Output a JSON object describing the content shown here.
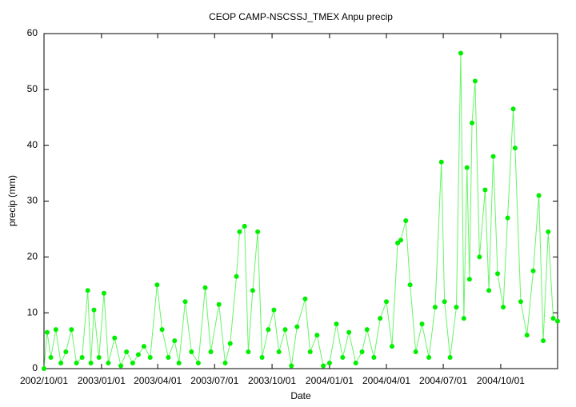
{
  "chart_data": {
    "type": "line",
    "title": "CEOP CAMP-NSCSSJ_TMEX Anpu  precip",
    "xlabel": "Date",
    "ylabel": "precip (mm)",
    "x": [
      "2002/10/01",
      "2002/10/06",
      "2002/10/12",
      "2002/10/20",
      "2002/10/28",
      "2002/11/05",
      "2002/11/14",
      "2002/11/22",
      "2002/12/01",
      "2002/12/10",
      "2002/12/15",
      "2002/12/20",
      "2002/12/28",
      "2003/01/05",
      "2003/01/12",
      "2003/01/22",
      "2003/02/01",
      "2003/02/10",
      "2003/02/20",
      "2003/03/01",
      "2003/03/10",
      "2003/03/20",
      "2003/03/31",
      "2003/04/08",
      "2003/04/18",
      "2003/04/28",
      "2003/05/05",
      "2003/05/15",
      "2003/05/25",
      "2003/06/05",
      "2003/06/16",
      "2003/06/25",
      "2003/07/08",
      "2003/07/18",
      "2003/07/26",
      "2003/08/05",
      "2003/08/10",
      "2003/08/18",
      "2003/08/24",
      "2003/08/31",
      "2003/09/08",
      "2003/09/15",
      "2003/09/25",
      "2003/10/04",
      "2003/10/12",
      "2003/10/22",
      "2003/11/01",
      "2003/11/10",
      "2003/11/23",
      "2003/12/01",
      "2003/12/12",
      "2003/12/22",
      "2004/01/01",
      "2004/01/12",
      "2004/01/22",
      "2004/02/01",
      "2004/02/12",
      "2004/02/22",
      "2004/03/01",
      "2004/03/12",
      "2004/03/22",
      "2004/04/01",
      "2004/04/10",
      "2004/04/19",
      "2004/04/24",
      "2004/05/02",
      "2004/05/09",
      "2004/05/18",
      "2004/05/28",
      "2004/06/08",
      "2004/06/18",
      "2004/06/28",
      "2004/07/03",
      "2004/07/12",
      "2004/07/22",
      "2004/07/29",
      "2004/08/03",
      "2004/08/08",
      "2004/08/12",
      "2004/08/16",
      "2004/08/21",
      "2004/08/28",
      "2004/09/06",
      "2004/09/12",
      "2004/09/19",
      "2004/09/26",
      "2004/10/05",
      "2004/10/12",
      "2004/10/21",
      "2004/10/24",
      "2004/11/02",
      "2004/11/12",
      "2004/11/22",
      "2004/12/01",
      "2004/12/08",
      "2004/12/16",
      "2004/12/24",
      "2004/12/31"
    ],
    "series": [
      {
        "name": "precip",
        "color": "#00ee00",
        "values": [
          0,
          6.5,
          2,
          7,
          1,
          3,
          7,
          1,
          2,
          14,
          1,
          10.5,
          2,
          13.5,
          1,
          5.5,
          0.5,
          3,
          1,
          2.5,
          4,
          2,
          15,
          7,
          2,
          5,
          1,
          12,
          3,
          1,
          14.5,
          3,
          11.5,
          1,
          4.5,
          16.5,
          24.5,
          25.5,
          3,
          14,
          24.5,
          2,
          7,
          10.5,
          3,
          7,
          0.5,
          7.5,
          12.5,
          3,
          6,
          0.5,
          1,
          8,
          2,
          6.5,
          1,
          3,
          7,
          2,
          9,
          12,
          4,
          22.5,
          23,
          26.5,
          15,
          3,
          8,
          2,
          11,
          37,
          12,
          2,
          11,
          56.5,
          9,
          36,
          16,
          44,
          51.5,
          20,
          32,
          14,
          38,
          17,
          11,
          27,
          46.5,
          39.5,
          12,
          6,
          17.5,
          31,
          5,
          24.5,
          9,
          8.5
        ]
      }
    ],
    "xlim": [
      "2002/10/01",
      "2004/12/31"
    ],
    "xticks": [
      "2002/10/01",
      "2003/01/01",
      "2003/04/01",
      "2003/07/01",
      "2003/10/01",
      "2004/01/01",
      "2004/04/01",
      "2004/07/01",
      "2004/10/01"
    ],
    "ylim": [
      0,
      60
    ],
    "yticks": [
      0,
      10,
      20,
      30,
      40,
      50,
      60
    ],
    "grid": false
  }
}
